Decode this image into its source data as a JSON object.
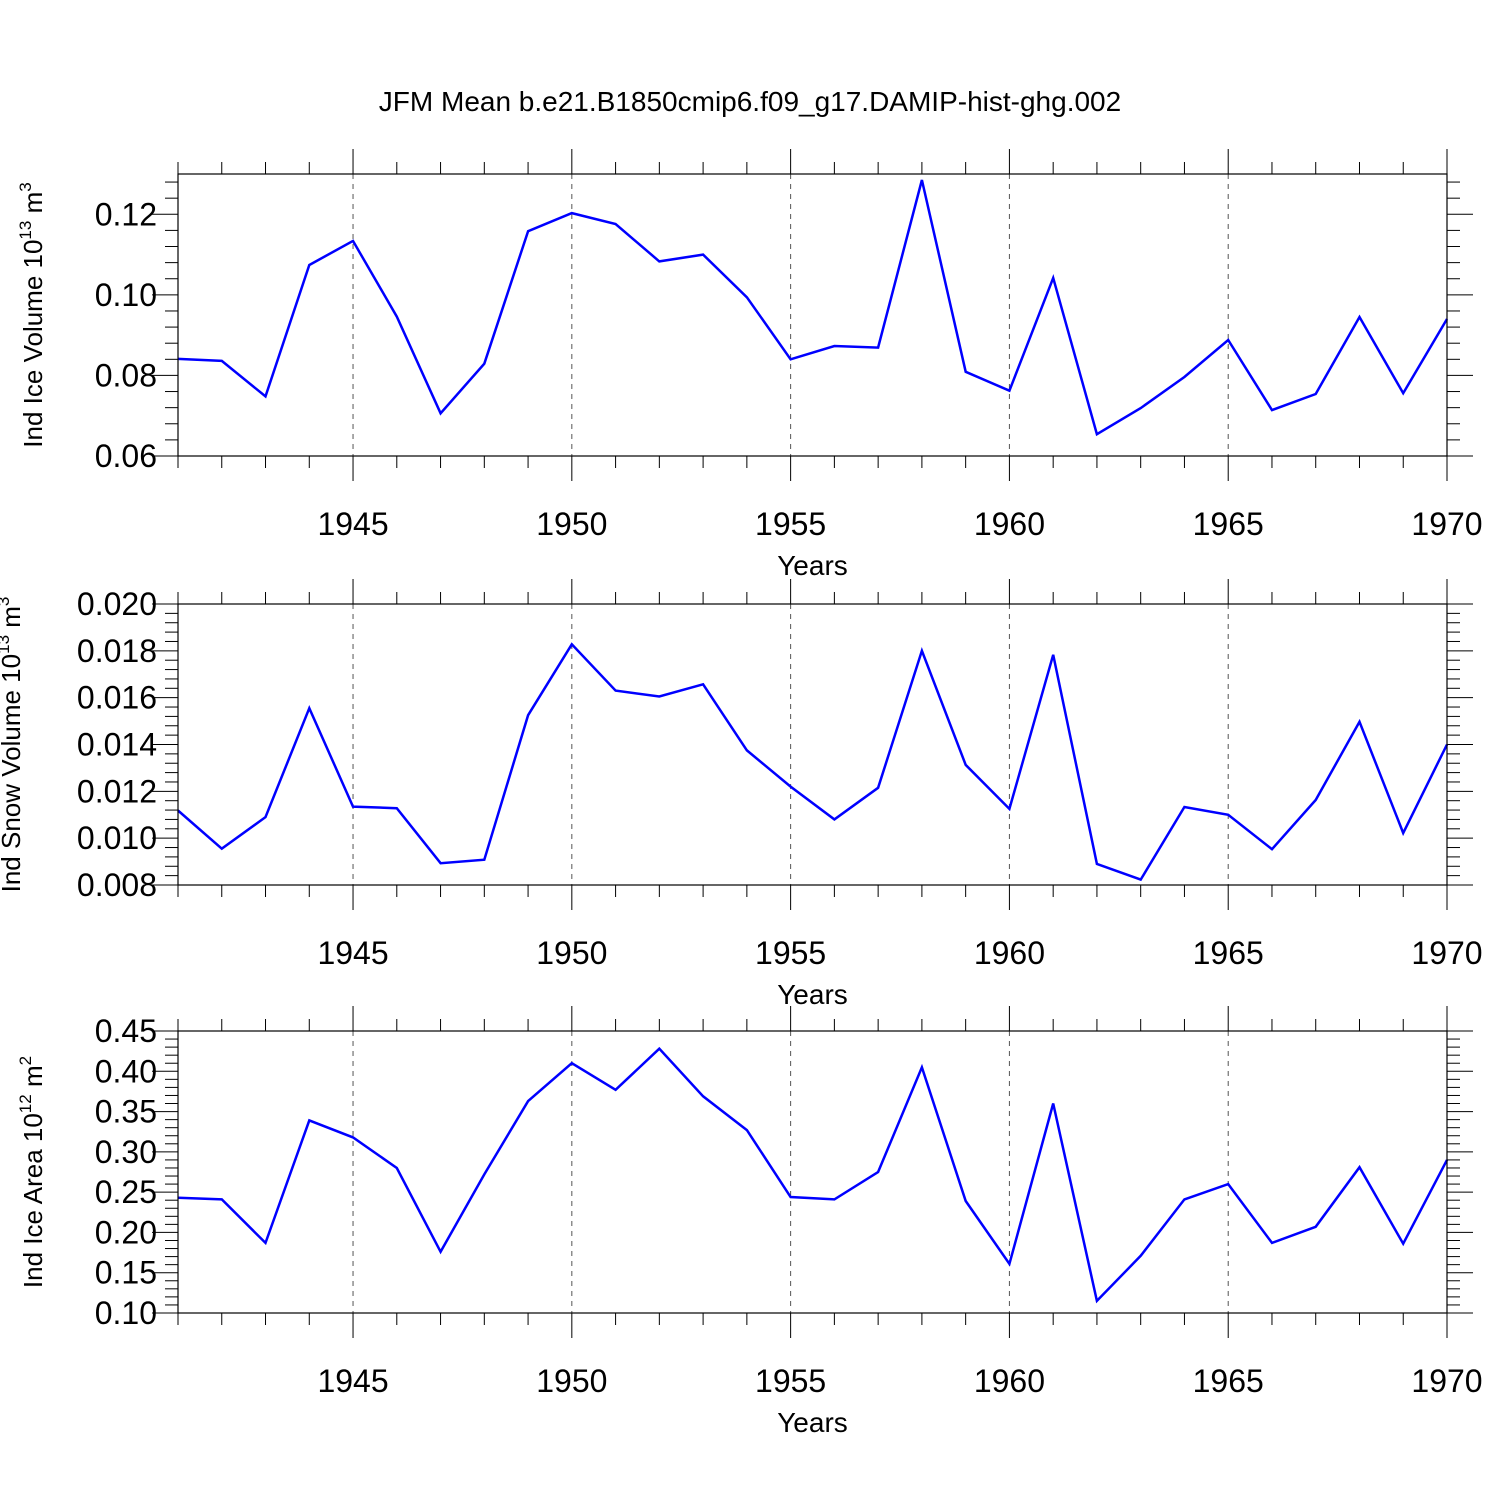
{
  "title": "JFM Mean b.e21.B1850cmip6.f09_g17.DAMIP-hist-ghg.002",
  "colors": {
    "series": "#0000ff",
    "axis": "#000000",
    "grid": "#555555"
  },
  "chart_data": [
    {
      "type": "line",
      "ylabel": "Ind Ice Volume 10",
      "ylabel_exp": "13",
      "ylabel_unit": " m",
      "ylabel_unit_exp": "3",
      "xlabel": "Years",
      "xlim": [
        1941,
        1970
      ],
      "ylim": [
        0.06,
        0.13
      ],
      "yticks": [
        0.06,
        0.08,
        0.1,
        0.12
      ],
      "ytick_labels": [
        "0.06",
        "0.08",
        "0.10",
        "0.12"
      ],
      "xticks": [
        1945,
        1950,
        1955,
        1960,
        1965,
        1970
      ],
      "xtick_labels": [
        "1945",
        "1950",
        "1955",
        "1960",
        "1965",
        "1970"
      ],
      "grid": "vertical dashed at major x ticks",
      "x": [
        1941,
        1942,
        1943,
        1944,
        1945,
        1946,
        1947,
        1948,
        1949,
        1950,
        1951,
        1952,
        1953,
        1954,
        1955,
        1956,
        1957,
        1958,
        1959,
        1960,
        1961,
        1962,
        1963,
        1964,
        1965,
        1966,
        1967,
        1968,
        1969,
        1970
      ],
      "values": [
        0.0841,
        0.0836,
        0.0748,
        0.1074,
        0.1134,
        0.0946,
        0.0706,
        0.0829,
        0.1158,
        0.1203,
        0.1176,
        0.1083,
        0.11,
        0.0994,
        0.084,
        0.0873,
        0.0869,
        0.1285,
        0.0809,
        0.0762,
        0.1042,
        0.0654,
        0.0719,
        0.0796,
        0.0888,
        0.0714,
        0.0754,
        0.0945,
        0.0756,
        0.094
      ]
    },
    {
      "type": "line",
      "ylabel": "Ind Snow Volume 10",
      "ylabel_exp": "13",
      "ylabel_unit": " m",
      "ylabel_unit_exp": "3",
      "xlabel": "Years",
      "xlim": [
        1941,
        1970
      ],
      "ylim": [
        0.008,
        0.02
      ],
      "yticks": [
        0.008,
        0.01,
        0.012,
        0.014,
        0.016,
        0.018,
        0.02
      ],
      "ytick_labels": [
        "0.008",
        "0.010",
        "0.012",
        "0.014",
        "0.016",
        "0.018",
        "0.020"
      ],
      "xticks": [
        1945,
        1950,
        1955,
        1960,
        1965,
        1970
      ],
      "xtick_labels": [
        "1945",
        "1950",
        "1955",
        "1960",
        "1965",
        "1970"
      ],
      "grid": "vertical dashed at major x ticks",
      "x": [
        1941,
        1942,
        1943,
        1944,
        1945,
        1946,
        1947,
        1948,
        1949,
        1950,
        1951,
        1952,
        1953,
        1954,
        1955,
        1956,
        1957,
        1958,
        1959,
        1960,
        1961,
        1962,
        1963,
        1964,
        1965,
        1966,
        1967,
        1968,
        1969,
        1970
      ],
      "values": [
        0.01118,
        0.00955,
        0.0109,
        0.01555,
        0.01135,
        0.01128,
        0.00893,
        0.00908,
        0.01525,
        0.01828,
        0.0163,
        0.01605,
        0.01657,
        0.01375,
        0.0122,
        0.0108,
        0.01215,
        0.018,
        0.01313,
        0.01125,
        0.01783,
        0.0089,
        0.00823,
        0.01133,
        0.011,
        0.00953,
        0.01163,
        0.01497,
        0.01022,
        0.014
      ]
    },
    {
      "type": "line",
      "ylabel": "Ind Ice Area 10",
      "ylabel_exp": "12",
      "ylabel_unit": " m",
      "ylabel_unit_exp": "2",
      "xlabel": "Years",
      "xlim": [
        1941,
        1970
      ],
      "ylim": [
        0.1,
        0.45
      ],
      "yticks": [
        0.1,
        0.15,
        0.2,
        0.25,
        0.3,
        0.35,
        0.4,
        0.45
      ],
      "ytick_labels": [
        "0.10",
        "0.15",
        "0.20",
        "0.25",
        "0.30",
        "0.35",
        "0.40",
        "0.45"
      ],
      "xticks": [
        1945,
        1950,
        1955,
        1960,
        1965,
        1970
      ],
      "xtick_labels": [
        "1945",
        "1950",
        "1955",
        "1960",
        "1965",
        "1970"
      ],
      "grid": "vertical dashed at major x ticks",
      "x": [
        1941,
        1942,
        1943,
        1944,
        1945,
        1946,
        1947,
        1948,
        1949,
        1950,
        1951,
        1952,
        1953,
        1954,
        1955,
        1956,
        1957,
        1958,
        1959,
        1960,
        1961,
        1962,
        1963,
        1964,
        1965,
        1966,
        1967,
        1968,
        1969,
        1970
      ],
      "values": [
        0.243,
        0.241,
        0.187,
        0.339,
        0.318,
        0.28,
        0.176,
        0.272,
        0.363,
        0.41,
        0.377,
        0.428,
        0.369,
        0.327,
        0.244,
        0.241,
        0.275,
        0.405,
        0.239,
        0.161,
        0.36,
        0.115,
        0.171,
        0.241,
        0.26,
        0.187,
        0.207,
        0.281,
        0.186,
        0.29
      ]
    }
  ]
}
